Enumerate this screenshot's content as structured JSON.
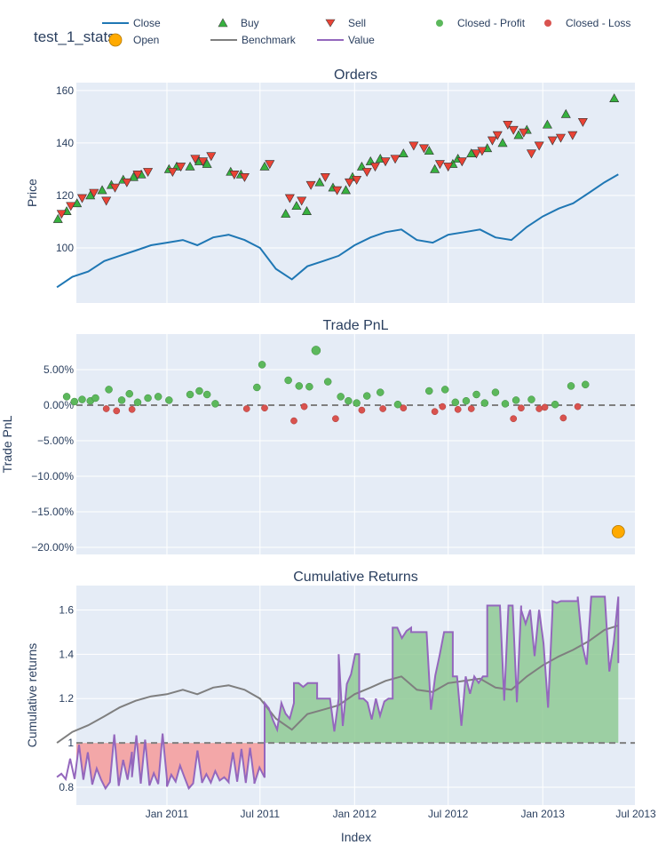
{
  "figure_title": "test_1_stats",
  "legend": {
    "items": [
      {
        "label": "Close",
        "kind": "line",
        "color": "#1f77b4"
      },
      {
        "label": "Buy",
        "kind": "tri-up",
        "color": "#37b13f"
      },
      {
        "label": "Sell",
        "kind": "tri-down",
        "color": "#ea4335"
      },
      {
        "label": "Closed - Profit",
        "kind": "dot",
        "color": "#5cb85c"
      },
      {
        "label": "Closed - Loss",
        "kind": "dot",
        "color": "#d9534f"
      },
      {
        "label": "Open",
        "kind": "bigdot",
        "color": "#ffaa00"
      },
      {
        "label": "Benchmark",
        "kind": "line",
        "color": "#7f7f7f"
      },
      {
        "label": "Value",
        "kind": "line",
        "color": "#9467bd"
      }
    ]
  },
  "x_axis": {
    "title": "Index",
    "ticks": [
      "Jan 2011",
      "Jul 2011",
      "Jan 2012",
      "Jul 2012",
      "Jan 2013",
      "Jul 2013"
    ]
  },
  "chart_data": [
    {
      "type": "line",
      "title": "Orders",
      "ylabel": "Price",
      "yticks": [
        100,
        120,
        140,
        160
      ],
      "ylim": [
        79,
        163
      ],
      "series_close": {
        "name": "Close",
        "x": [
          "2010-06-01",
          "2010-07-01",
          "2010-08-01",
          "2010-09-01",
          "2010-10-01",
          "2010-11-01",
          "2010-12-01",
          "2011-01-01",
          "2011-02-01",
          "2011-03-01",
          "2011-04-01",
          "2011-05-01",
          "2011-06-01",
          "2011-07-01",
          "2011-08-01",
          "2011-09-01",
          "2011-10-01",
          "2011-11-01",
          "2011-12-01",
          "2012-01-01",
          "2012-02-01",
          "2012-03-01",
          "2012-04-01",
          "2012-05-01",
          "2012-06-01",
          "2012-07-01",
          "2012-08-01",
          "2012-09-01",
          "2012-10-01",
          "2012-11-01",
          "2012-12-01",
          "2013-01-01",
          "2013-02-01",
          "2013-03-01",
          "2013-04-01",
          "2013-05-01",
          "2013-05-28"
        ],
        "y": [
          85,
          89,
          91,
          95,
          97,
          99,
          101,
          102,
          103,
          101,
          104,
          105,
          103,
          100,
          92,
          88,
          93,
          95,
          97,
          101,
          104,
          106,
          107,
          103,
          102,
          105,
          106,
          107,
          104,
          103,
          108,
          112,
          115,
          117,
          121,
          125,
          128
        ]
      },
      "buys": {
        "x": [
          "2010-06-03",
          "2010-06-20",
          "2010-07-10",
          "2010-08-05",
          "2010-08-28",
          "2010-09-15",
          "2010-10-08",
          "2010-10-28",
          "2010-11-12",
          "2011-01-05",
          "2011-01-20",
          "2011-02-15",
          "2011-03-05",
          "2011-03-20",
          "2011-05-05",
          "2011-05-25",
          "2011-07-10",
          "2011-08-20",
          "2011-09-10",
          "2011-09-30",
          "2011-10-25",
          "2011-11-20",
          "2011-12-15",
          "2011-12-28",
          "2012-01-15",
          "2012-02-01",
          "2012-02-20",
          "2012-04-05",
          "2012-05-25",
          "2012-06-05",
          "2012-07-10",
          "2012-07-20",
          "2012-08-15",
          "2012-09-15",
          "2012-10-15",
          "2012-11-15",
          "2012-12-01",
          "2013-01-10",
          "2013-02-15",
          "2013-05-20"
        ],
        "y": [
          111,
          114,
          117,
          120,
          122,
          124,
          126,
          127,
          128,
          130,
          131,
          131,
          133,
          132,
          129,
          128,
          131,
          113,
          116,
          114,
          125,
          123,
          122,
          127,
          131,
          133,
          134,
          136,
          137,
          130,
          132,
          134,
          136,
          138,
          140,
          143,
          145,
          147,
          151,
          157
        ]
      },
      "sells": {
        "x": [
          "2010-06-10",
          "2010-06-28",
          "2010-07-20",
          "2010-08-12",
          "2010-09-05",
          "2010-09-22",
          "2010-10-15",
          "2010-11-05",
          "2010-11-25",
          "2011-01-12",
          "2011-01-28",
          "2011-02-25",
          "2011-03-12",
          "2011-03-28",
          "2011-05-12",
          "2011-06-01",
          "2011-07-20",
          "2011-08-28",
          "2011-09-20",
          "2011-10-08",
          "2011-11-05",
          "2011-11-28",
          "2011-12-22",
          "2012-01-05",
          "2012-01-25",
          "2012-02-10",
          "2012-03-01",
          "2012-03-20",
          "2012-04-25",
          "2012-05-15",
          "2012-06-15",
          "2012-07-01",
          "2012-07-28",
          "2012-08-25",
          "2012-09-05",
          "2012-09-25",
          "2012-10-05",
          "2012-10-25",
          "2012-11-05",
          "2012-11-25",
          "2012-12-10",
          "2012-12-25",
          "2013-01-20",
          "2013-02-05",
          "2013-02-28",
          "2013-03-20"
        ],
        "y": [
          113,
          116,
          119,
          121,
          118,
          123,
          125,
          128,
          129,
          129,
          131,
          134,
          133,
          135,
          128,
          127,
          132,
          119,
          118,
          124,
          127,
          122,
          125,
          126,
          129,
          131,
          133,
          134,
          139,
          138,
          132,
          131,
          133,
          136,
          137,
          141,
          143,
          147,
          145,
          144,
          136,
          139,
          141,
          142,
          143,
          148
        ]
      }
    },
    {
      "type": "scatter",
      "title": "Trade PnL",
      "ylabel": "Trade PnL",
      "yticks": [
        "5.00%",
        "0.00%",
        "−5.00%",
        "−10.00%",
        "−15.00%",
        "−20.00%"
      ],
      "ytick_values": [
        5,
        0,
        -5,
        -10,
        -15,
        -20
      ],
      "ylim": [
        -21,
        10
      ],
      "profit": {
        "x": [
          "2010-06-20",
          "2010-07-05",
          "2010-07-20",
          "2010-08-05",
          "2010-08-15",
          "2010-09-10",
          "2010-10-05",
          "2010-10-20",
          "2010-11-05",
          "2010-11-25",
          "2010-12-15",
          "2011-01-05",
          "2011-02-15",
          "2011-03-05",
          "2011-03-20",
          "2011-04-05",
          "2011-06-25",
          "2011-07-05",
          "2011-08-25",
          "2011-09-15",
          "2011-10-05",
          "2011-11-10",
          "2011-12-05",
          "2011-12-20",
          "2012-01-05",
          "2012-01-25",
          "2012-02-20",
          "2012-03-25",
          "2012-05-25",
          "2012-06-25",
          "2012-07-15",
          "2012-08-05",
          "2012-08-25",
          "2012-09-10",
          "2012-10-01",
          "2012-10-20",
          "2012-11-10",
          "2012-12-10",
          "2013-01-25",
          "2013-02-25",
          "2013-03-25"
        ],
        "y": [
          1.2,
          0.5,
          0.8,
          0.6,
          1.0,
          2.2,
          0.7,
          1.6,
          0.4,
          1.0,
          1.2,
          0.7,
          1.5,
          2.0,
          1.5,
          0.2,
          2.5,
          5.7,
          3.5,
          2.7,
          2.6,
          3.3,
          1.2,
          0.6,
          0.3,
          1.3,
          1.8,
          0.1,
          2.0,
          2.2,
          0.4,
          0.6,
          1.5,
          0.3,
          1.8,
          0.2,
          0.7,
          0.8,
          0.1,
          2.7,
          2.9
        ]
      },
      "loss": {
        "x": [
          "2010-09-05",
          "2010-09-25",
          "2010-10-25",
          "2011-06-05",
          "2011-07-10",
          "2011-09-05",
          "2011-09-25",
          "2011-11-25",
          "2012-01-15",
          "2012-02-25",
          "2012-04-05",
          "2012-06-05",
          "2012-06-20",
          "2012-07-20",
          "2012-08-15",
          "2012-11-05",
          "2012-11-20",
          "2012-12-25",
          "2013-01-05",
          "2013-02-10",
          "2013-03-10"
        ],
        "y": [
          -0.5,
          -0.8,
          -0.6,
          -0.5,
          -0.4,
          -2.2,
          -0.2,
          -1.9,
          -0.7,
          -0.5,
          -0.4,
          -0.9,
          -0.2,
          -0.6,
          -0.5,
          -1.9,
          -0.4,
          -0.5,
          -0.3,
          -1.8,
          -0.2
        ]
      },
      "big_profit": {
        "x": "2011-10-18",
        "y": 7.7
      },
      "open": {
        "x": "2013-05-28",
        "y": -17.8
      }
    },
    {
      "type": "area",
      "title": "Cumulative Returns",
      "ylabel": "Cumulative returns",
      "yticks": [
        "0.8",
        "1",
        "1.2",
        "1.4",
        "1.6"
      ],
      "ytick_values": [
        0.8,
        1.0,
        1.2,
        1.4,
        1.6
      ],
      "ylim": [
        0.72,
        1.71
      ],
      "baseline": 1,
      "benchmark": {
        "x": [
          "2010-06-01",
          "2010-07-01",
          "2010-08-01",
          "2010-09-01",
          "2010-10-01",
          "2010-11-01",
          "2010-12-01",
          "2011-01-01",
          "2011-02-01",
          "2011-03-01",
          "2011-04-01",
          "2011-05-01",
          "2011-06-01",
          "2011-07-01",
          "2011-08-01",
          "2011-09-01",
          "2011-10-01",
          "2011-11-01",
          "2011-12-01",
          "2012-01-01",
          "2012-02-01",
          "2012-03-01",
          "2012-04-01",
          "2012-05-01",
          "2012-06-01",
          "2012-07-01",
          "2012-08-01",
          "2012-09-01",
          "2012-10-01",
          "2012-11-01",
          "2012-12-01",
          "2013-01-01",
          "2013-02-01",
          "2013-03-01",
          "2013-04-01",
          "2013-05-01",
          "2013-05-28"
        ],
        "y": [
          1.0,
          1.05,
          1.08,
          1.12,
          1.16,
          1.19,
          1.21,
          1.22,
          1.24,
          1.22,
          1.25,
          1.26,
          1.24,
          1.2,
          1.11,
          1.06,
          1.13,
          1.15,
          1.17,
          1.22,
          1.25,
          1.28,
          1.3,
          1.24,
          1.23,
          1.27,
          1.28,
          1.29,
          1.25,
          1.24,
          1.3,
          1.35,
          1.39,
          1.42,
          1.46,
          1.51,
          1.53
        ]
      },
      "value_steps": [
        {
          "from": "2010-06-01",
          "to": "2010-10-25",
          "level": 0.99
        },
        {
          "from": "2010-10-25",
          "to": "2011-01-01",
          "level": 1.0
        },
        {
          "from": "2011-01-01",
          "to": "2011-03-10",
          "level": 1.1
        },
        {
          "from": "2011-03-10",
          "to": "2011-05-01",
          "level": 1.0
        },
        {
          "from": "2011-05-01",
          "to": "2011-06-20",
          "level": 1.16
        },
        {
          "from": "2011-06-20",
          "to": "2011-07-10",
          "level": 1.0
        },
        {
          "from": "2011-07-10",
          "to": "2011-09-05",
          "level": 1.18
        },
        {
          "from": "2011-09-05",
          "to": "2011-10-20",
          "level": 1.27
        },
        {
          "from": "2011-10-20",
          "to": "2011-12-01",
          "level": 1.2
        },
        {
          "from": "2011-12-01",
          "to": "2012-01-10",
          "level": 1.4
        },
        {
          "from": "2012-01-10",
          "to": "2012-03-15",
          "level": 1.2
        },
        {
          "from": "2012-03-15",
          "to": "2012-04-20",
          "level": 1.52
        },
        {
          "from": "2012-04-20",
          "to": "2012-05-20",
          "level": 1.5
        },
        {
          "from": "2012-05-20",
          "to": "2012-07-10",
          "level": 1.5
        },
        {
          "from": "2012-07-10",
          "to": "2012-09-15",
          "level": 1.3
        },
        {
          "from": "2012-09-15",
          "to": "2012-11-20",
          "level": 1.62
        },
        {
          "from": "2012-11-20",
          "to": "2013-01-20",
          "level": 1.6
        },
        {
          "from": "2013-01-20",
          "to": "2013-03-10",
          "level": 1.64
        },
        {
          "from": "2013-03-10",
          "to": "2013-05-28",
          "level": 1.66
        }
      ],
      "value_end": 1.36
    }
  ]
}
